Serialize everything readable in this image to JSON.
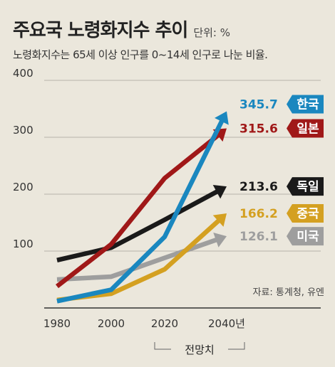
{
  "header": {
    "title": "주요국 노령화지수 추이",
    "unit": "단위: %",
    "subtitle": "노령화지수는 65세 이상 인구를 0~14세 인구로 나눈 비율."
  },
  "source": "자료: 통계청, 유엔",
  "projection_label": "전망치",
  "chart_data": {
    "type": "line",
    "title": "주요국 노령화지수 추이",
    "x": [
      "1980",
      "2000",
      "2020",
      "2040년"
    ],
    "yticks": [
      100,
      200,
      300,
      400
    ],
    "ylim": [
      0,
      420
    ],
    "grid": true,
    "series": [
      {
        "name": "한국",
        "label": "345.7",
        "color": "#1a87bf",
        "values": [
          12,
          32,
          125,
          345.7
        ]
      },
      {
        "name": "일본",
        "label": "315.6",
        "color": "#a01818",
        "values": [
          38,
          112,
          228,
          315.6
        ]
      },
      {
        "name": "독일",
        "label": "213.6",
        "color": "#1a1a1a",
        "values": [
          84,
          106,
          155,
          213.6
        ]
      },
      {
        "name": "중국",
        "label": "166.2",
        "color": "#d4a021",
        "values": [
          14,
          25,
          68,
          166.2
        ]
      },
      {
        "name": "미국",
        "label": "126.1",
        "color": "#9e9e9e",
        "values": [
          50,
          55,
          88,
          126.1
        ]
      }
    ]
  }
}
